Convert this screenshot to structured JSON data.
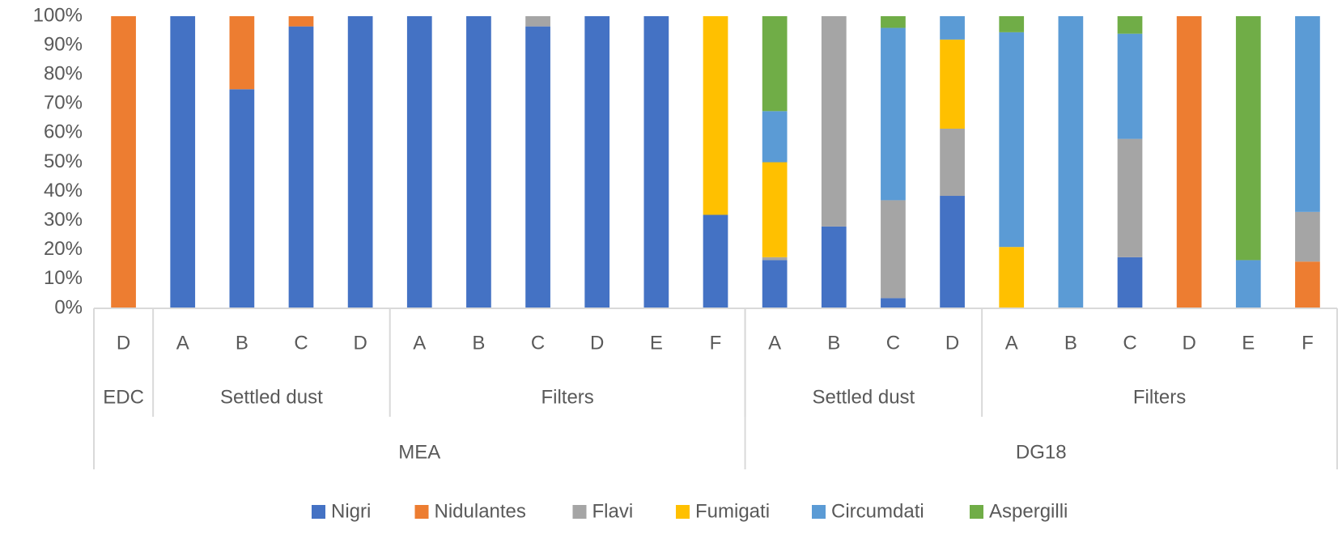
{
  "chart_data": {
    "type": "stacked-bar-100",
    "groups": [
      {
        "name": "MEA",
        "subgroups": [
          {
            "name": "EDC",
            "categories": [
              "D"
            ]
          },
          {
            "name": "Settled dust",
            "categories": [
              "A",
              "B",
              "C",
              "D"
            ]
          },
          {
            "name": "Filters",
            "categories": [
              "A",
              "B",
              "C",
              "D",
              "E",
              "F"
            ]
          }
        ]
      },
      {
        "name": "DG18",
        "subgroups": [
          {
            "name": "Settled dust",
            "categories": [
              "A",
              "B",
              "C",
              "D"
            ]
          },
          {
            "name": "Filters",
            "categories": [
              "A",
              "B",
              "C",
              "D",
              "E",
              "F"
            ]
          }
        ]
      }
    ],
    "series": [
      {
        "name": "Nigri",
        "color": "#4472c4",
        "values": [
          0,
          100,
          75,
          96.5,
          100,
          100,
          100,
          96.5,
          100,
          100,
          32,
          16.5,
          28,
          3.5,
          38.5,
          0,
          0,
          17.5,
          0,
          0,
          0
        ]
      },
      {
        "name": "Nidulantes",
        "color": "#ed7d31",
        "values": [
          100,
          0,
          25,
          3.5,
          0,
          0,
          0,
          0,
          0,
          0,
          0,
          0,
          0,
          0,
          0,
          0,
          0,
          0,
          100,
          0,
          16
        ]
      },
      {
        "name": "Flavi",
        "color": "#a5a5a5",
        "values": [
          0,
          0,
          0,
          0,
          0,
          0,
          0,
          3.5,
          0,
          0,
          0,
          1,
          72,
          33.5,
          23,
          0,
          0,
          40.5,
          0,
          0,
          17
        ]
      },
      {
        "name": "Fumigati",
        "color": "#ffc000",
        "values": [
          0,
          0,
          0,
          0,
          0,
          0,
          0,
          0,
          0,
          0,
          68,
          32.5,
          0,
          0,
          30.5,
          21,
          0,
          0,
          0,
          0,
          0
        ]
      },
      {
        "name": "Circumdati",
        "color": "#5b9bd5",
        "values": [
          0,
          0,
          0,
          0,
          0,
          0,
          0,
          0,
          0,
          0,
          0,
          17.5,
          0,
          59,
          8,
          73.5,
          100,
          36,
          0,
          16.5,
          67
        ]
      },
      {
        "name": "Aspergilli",
        "color": "#70ad47",
        "values": [
          0,
          0,
          0,
          0,
          0,
          0,
          0,
          0,
          0,
          0,
          0,
          32.5,
          0,
          4,
          0,
          5.5,
          0,
          6,
          0,
          83.5,
          0
        ]
      }
    ],
    "ylim": [
      0,
      100
    ],
    "yticks": [
      {
        "value": 0,
        "label": "0%"
      },
      {
        "value": 10,
        "label": "10%"
      },
      {
        "value": 20,
        "label": "20%"
      },
      {
        "value": 30,
        "label": "30%"
      },
      {
        "value": 40,
        "label": "40%"
      },
      {
        "value": 50,
        "label": "50%"
      },
      {
        "value": 60,
        "label": "60%"
      },
      {
        "value": 70,
        "label": "70%"
      },
      {
        "value": 80,
        "label": "80%"
      },
      {
        "value": 90,
        "label": "90%"
      },
      {
        "value": 100,
        "label": "100%"
      }
    ],
    "legend": "bottom"
  }
}
